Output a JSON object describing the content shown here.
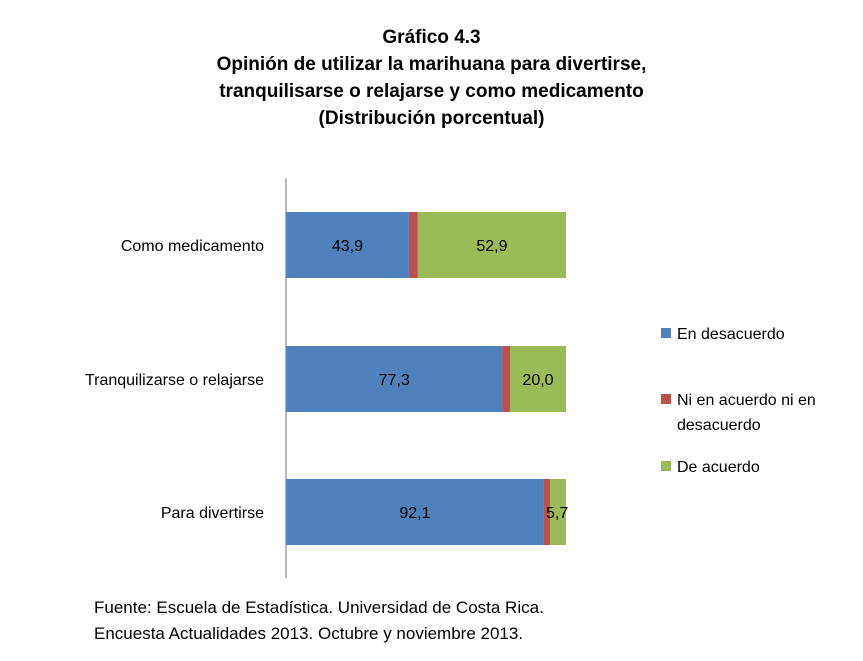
{
  "header": {
    "title": "Gráfico 4.3",
    "subtitle_line1": "Opinión de utilizar la marihuana para divertirse,",
    "subtitle_line2": "tranquilisarse o relajarse y como medicamento",
    "subtitle_line3": "(Distribución porcentual)"
  },
  "footer": {
    "source_line1": "Fuente: Escuela de Estadística. Universidad de Costa Rica.",
    "source_line2": "Encuesta Actualidades 2013. Octubre y noviembre 2013."
  },
  "colors": {
    "desacuerdo": "#4f81bd",
    "ni": "#c0504d",
    "acuerdo": "#9bbb59"
  },
  "chart_data": {
    "type": "bar",
    "orientation": "horizontal",
    "stacked": true,
    "percent_stacked": true,
    "categories": [
      "Como medicamento",
      "Tranquilizarse o relajarse",
      "Para divertirse"
    ],
    "series": [
      {
        "name": "En desacuerdo",
        "values": [
          43.9,
          77.3,
          92.1
        ],
        "labels": [
          "43,9",
          "77,3",
          "92,1"
        ],
        "color": "#4f81bd"
      },
      {
        "name": "Ni en acuerdo ni en desacuerdo",
        "values": [
          3.2,
          2.7,
          2.2
        ],
        "labels": [
          "",
          "",
          ""
        ],
        "color": "#c0504d"
      },
      {
        "name": "De acuerdo",
        "values": [
          52.9,
          20.0,
          5.7
        ],
        "labels": [
          "52,9",
          "20,0",
          "5,7"
        ],
        "color": "#9bbb59"
      }
    ],
    "legend": {
      "placement": "right",
      "entries": [
        {
          "lines": [
            "En desacuerdo"
          ],
          "color": "#4f81bd"
        },
        {
          "lines": [
            "Ni en acuerdo ni en",
            "desacuerdo"
          ],
          "color": "#c0504d"
        },
        {
          "lines": [
            "De acuerdo"
          ],
          "color": "#9bbb59"
        }
      ]
    },
    "xlim": [
      0,
      100
    ],
    "grid": false
  }
}
